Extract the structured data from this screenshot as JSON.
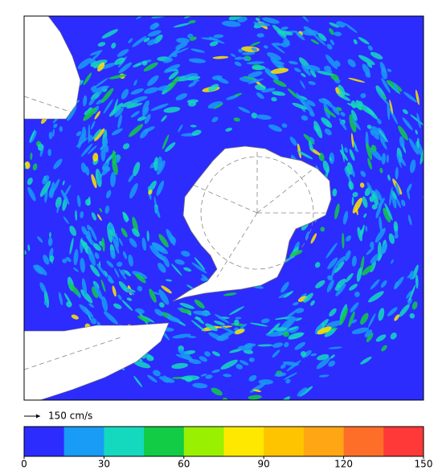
{
  "legend": {
    "vector_label": "150 cm/s",
    "colorbar": {
      "range": [
        0,
        150
      ],
      "ticks": [
        0,
        30,
        60,
        90,
        120,
        150
      ],
      "colors": [
        "#2c2cff",
        "#199cf5",
        "#14d9bf",
        "#11cc44",
        "#99f000",
        "#ffe800",
        "#ffc400",
        "#ffa614",
        "#ff6e28",
        "#ff3838"
      ]
    }
  }
}
